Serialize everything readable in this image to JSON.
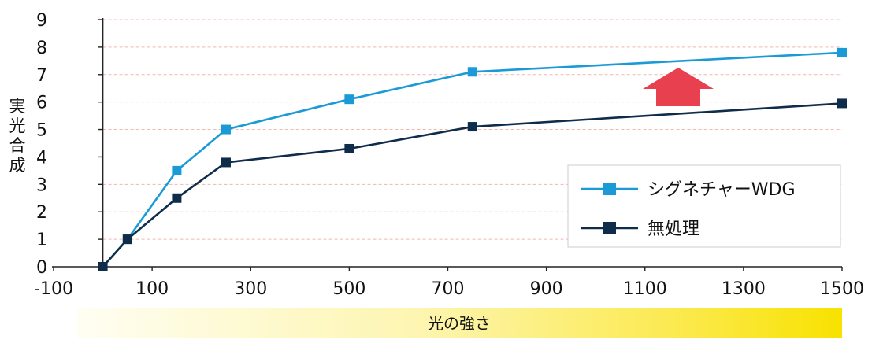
{
  "chart_data": {
    "type": "line",
    "xlim": [
      -100,
      1500
    ],
    "ylim": [
      0,
      9
    ],
    "x_ticks": [
      -100,
      100,
      300,
      500,
      700,
      900,
      1100,
      1300,
      1500
    ],
    "y_ticks": [
      0,
      1,
      2,
      3,
      4,
      5,
      6,
      7,
      8,
      9
    ],
    "ylabel": "実光合成",
    "band_label": "光の強さ",
    "grid": "horizontal dashed",
    "legend_position": "bottom-right",
    "series": [
      {
        "name": "シグネチャーWDG",
        "color": "#1a9ad6",
        "points": [
          [
            0,
            0
          ],
          [
            50,
            1
          ],
          [
            150,
            3.5
          ],
          [
            250,
            5
          ],
          [
            500,
            6.1
          ],
          [
            750,
            7.1
          ],
          [
            1500,
            7.8
          ]
        ]
      },
      {
        "name": "無処理",
        "color": "#0f2d4a",
        "points": [
          [
            0,
            0
          ],
          [
            50,
            1
          ],
          [
            150,
            2.5
          ],
          [
            250,
            3.8
          ],
          [
            500,
            4.3
          ],
          [
            750,
            5.1
          ],
          [
            1500,
            5.95
          ]
        ]
      }
    ],
    "annotation": {
      "type": "up-arrow",
      "color": "#e8404f",
      "meaning": "increase"
    }
  }
}
